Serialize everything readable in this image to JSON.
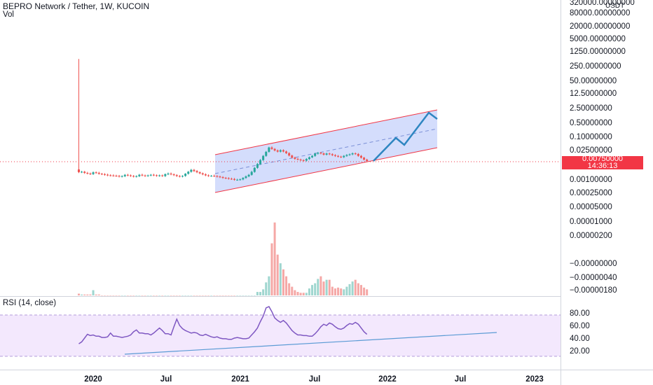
{
  "header": {
    "title": "BEPRO Network / Tether, 1W, KUCOIN",
    "vol_label": "Vol"
  },
  "rsi_panel": {
    "label": "RSI (14, close)",
    "levels": [
      80,
      60,
      40,
      20
    ],
    "level_labels": [
      "80.00",
      "60.00",
      "40.00",
      "20.00"
    ],
    "band": [
      30,
      70
    ]
  },
  "price_scale": {
    "currency": "USDT",
    "labels": [
      "320000.00000000",
      "80000.00000000",
      "20000.00000000",
      "5000.00000000",
      "1250.00000000",
      "250.00000000",
      "50.00000000",
      "12.50000000",
      "2.50000000",
      "0.50000000",
      "0.10000000",
      "0.02500000",
      "0.00100000",
      "0.00025000",
      "0.00005000",
      "0.00001000",
      "0.00000200",
      "−0.00000000",
      "−0.00000040",
      "−0.00000180"
    ]
  },
  "last_price": {
    "value": "0.00750000",
    "countdown": "14:36:13"
  },
  "time_axis": {
    "labels": [
      "2020",
      "Jul",
      "2021",
      "Jul",
      "2022",
      "Jul",
      "2023"
    ]
  },
  "colors": {
    "up": "#26a69a",
    "down": "#ef5350",
    "channel_fill": "#c9d4fb",
    "channel_line": "#f23645",
    "projection": "#2e86c1",
    "rsi_line": "#7e57c2",
    "rsi_band": "#f3e8fd",
    "trendline": "#5b9bd5"
  },
  "chart_data": [
    {
      "type": "candlestick",
      "title": "BEPRO Network / Tether, 1W, KUCOIN",
      "y_scale": "log",
      "series": [
        {
          "name": "BEPRO/USDT",
          "x": [
            "2019-12-09",
            "2019-12-16",
            "2019-12-23",
            "2019-12-30",
            "2020-01-06",
            "2020-01-13",
            "2020-01-20",
            "2020-01-27",
            "2020-02-03",
            "2020-02-10",
            "2020-02-17",
            "2020-02-24",
            "2020-03-02",
            "2020-03-09",
            "2020-03-16",
            "2020-03-23",
            "2020-03-30",
            "2020-04-06",
            "2020-04-13",
            "2020-04-20",
            "2020-04-27",
            "2020-05-04",
            "2020-05-11",
            "2020-05-18",
            "2020-05-25",
            "2020-06-01",
            "2020-06-08",
            "2020-06-15",
            "2020-06-22",
            "2020-06-29",
            "2020-07-06",
            "2020-07-13",
            "2020-07-20",
            "2020-07-27",
            "2020-08-03",
            "2020-08-10",
            "2020-08-17",
            "2020-08-24",
            "2020-08-31",
            "2020-09-07",
            "2020-09-14",
            "2020-09-21",
            "2020-09-28",
            "2020-10-05",
            "2020-10-12",
            "2020-10-19",
            "2020-10-26",
            "2020-11-02",
            "2020-11-09",
            "2020-11-16",
            "2020-11-23",
            "2020-11-30",
            "2020-12-07",
            "2020-12-14",
            "2020-12-21",
            "2020-12-28",
            "2021-01-04",
            "2021-01-11",
            "2021-01-18",
            "2021-01-25",
            "2021-02-01",
            "2021-02-08",
            "2021-02-15",
            "2021-02-22",
            "2021-03-01",
            "2021-03-08",
            "2021-03-15",
            "2021-03-22",
            "2021-03-29",
            "2021-04-05",
            "2021-04-12",
            "2021-04-19",
            "2021-04-26",
            "2021-05-03",
            "2021-05-10",
            "2021-05-17",
            "2021-05-24",
            "2021-05-31",
            "2021-06-07",
            "2021-06-14",
            "2021-06-21",
            "2021-06-28",
            "2021-07-05",
            "2021-07-12",
            "2021-07-19",
            "2021-07-26",
            "2021-08-02",
            "2021-08-09",
            "2021-08-16",
            "2021-08-23",
            "2021-08-30",
            "2021-09-06",
            "2021-09-13",
            "2021-09-20",
            "2021-09-27",
            "2021-10-04",
            "2021-10-11",
            "2021-10-18",
            "2021-10-25",
            "2021-11-01",
            "2021-11-08"
          ],
          "open": [
            0.00295,
            0.00218,
            0.00228,
            0.002,
            0.00187,
            0.00176,
            0.00213,
            0.00202,
            0.00182,
            0.00174,
            0.00164,
            0.00154,
            0.00151,
            0.00147,
            0.00144,
            0.00135,
            0.0014,
            0.00162,
            0.00153,
            0.00143,
            0.00133,
            0.0014,
            0.00163,
            0.00152,
            0.00143,
            0.00152,
            0.00163,
            0.00155,
            0.00145,
            0.00153,
            0.00142,
            0.00174,
            0.00185,
            0.00171,
            0.00157,
            0.00142,
            0.00134,
            0.00144,
            0.00183,
            0.00227,
            0.00281,
            0.00246,
            0.00216,
            0.00191,
            0.00171,
            0.00153,
            0.00143,
            0.00145,
            0.00141,
            0.00134,
            0.00126,
            0.00116,
            0.00112,
            0.00105,
            0.00102,
            0.00093,
            0.00094,
            0.00098,
            0.00115,
            0.00136,
            0.00162,
            0.00224,
            0.00351,
            0.00534,
            0.00829,
            0.0132,
            0.0207,
            0.0335,
            0.0286,
            0.0241,
            0.0212,
            0.0247,
            0.0215,
            0.0179,
            0.0137,
            0.0109,
            0.0095,
            0.00879,
            0.00821,
            0.00783,
            0.00934,
            0.0113,
            0.0132,
            0.0169,
            0.0185,
            0.0173,
            0.0152,
            0.0171,
            0.0159,
            0.0143,
            0.0131,
            0.0121,
            0.0115,
            0.0132,
            0.0146,
            0.0157,
            0.0174,
            0.0163,
            0.0132,
            0.0108,
            0.00874
          ],
          "high": [
            600,
            0.00251,
            0.00251,
            0.00225,
            0.00209,
            0.00235,
            0.00237,
            0.00227,
            0.002,
            0.00195,
            0.00185,
            0.00173,
            0.00171,
            0.00164,
            0.0016,
            0.00154,
            0.00177,
            0.00181,
            0.00169,
            0.00158,
            0.00153,
            0.00179,
            0.00183,
            0.00167,
            0.00167,
            0.00178,
            0.00182,
            0.00169,
            0.00167,
            0.00167,
            0.00189,
            0.0021,
            0.0021,
            0.00189,
            0.00174,
            0.00157,
            0.00155,
            0.00195,
            0.0025,
            0.00312,
            0.00309,
            0.00276,
            0.00237,
            0.0021,
            0.00191,
            0.0017,
            0.00159,
            0.00167,
            0.00157,
            0.00148,
            0.00139,
            0.00128,
            0.00124,
            0.00118,
            0.00114,
            0.00105,
            0.00108,
            0.00125,
            0.00151,
            0.00179,
            0.00254,
            0.00384,
            0.00594,
            0.00928,
            0.0145,
            0.0228,
            0.0366,
            0.0379,
            0.0313,
            0.0267,
            0.0272,
            0.0273,
            0.0237,
            0.0198,
            0.0151,
            0.0121,
            0.0106,
            0.00974,
            0.00899,
            0.0103,
            0.0124,
            0.0145,
            0.0186,
            0.0204,
            0.0204,
            0.0189,
            0.0188,
            0.0188,
            0.0176,
            0.0159,
            0.0145,
            0.0134,
            0.0144,
            0.016,
            0.0172,
            0.0192,
            0.0192,
            0.018,
            0.0146,
            0.0119,
            0.00964
          ],
          "low": [
            0.00197,
            0.00197,
            0.00181,
            0.0017,
            0.00159,
            0.0016,
            0.00183,
            0.00165,
            0.00158,
            0.00148,
            0.00139,
            0.00136,
            0.00133,
            0.0013,
            0.00121,
            0.00122,
            0.00126,
            0.00138,
            0.0013,
            0.00121,
            0.00121,
            0.00127,
            0.00138,
            0.00129,
            0.00131,
            0.00138,
            0.0014,
            0.00132,
            0.00131,
            0.00129,
            0.00128,
            0.00157,
            0.00155,
            0.00142,
            0.00129,
            0.00122,
            0.00122,
            0.00131,
            0.00166,
            0.00206,
            0.00223,
            0.00195,
            0.00174,
            0.00155,
            0.0014,
            0.0013,
            0.00131,
            0.00128,
            0.00121,
            0.00114,
            0.00105,
            0.00101,
            0.00096,
            0.00093,
            0.00085,
            0.00085,
            0.00086,
            0.00089,
            0.00105,
            0.00124,
            0.00148,
            0.00205,
            0.0032,
            0.00488,
            0.00758,
            0.012,
            0.0189,
            0.026,
            0.0218,
            0.0192,
            0.0193,
            0.0196,
            0.0162,
            0.0124,
            0.00989,
            0.0086,
            0.00796,
            0.00745,
            0.00709,
            0.00711,
            0.00846,
            0.0103,
            0.012,
            0.0153,
            0.0157,
            0.0138,
            0.0138,
            0.0144,
            0.013,
            0.0118,
            0.011,
            0.0104,
            0.0104,
            0.0119,
            0.0133,
            0.0142,
            0.0148,
            0.012,
            0.00979,
            0.00792,
            0.00679
          ],
          "close": [
            0.00218,
            0.00228,
            0.002,
            0.00187,
            0.00176,
            0.00213,
            0.00202,
            0.00182,
            0.00174,
            0.00164,
            0.00154,
            0.00151,
            0.00147,
            0.00144,
            0.00135,
            0.0014,
            0.00162,
            0.00153,
            0.00143,
            0.00133,
            0.0014,
            0.00163,
            0.00152,
            0.00143,
            0.00152,
            0.00163,
            0.00155,
            0.00145,
            0.00153,
            0.00142,
            0.00174,
            0.00185,
            0.00171,
            0.00157,
            0.00142,
            0.00134,
            0.00144,
            0.00183,
            0.00227,
            0.00281,
            0.00246,
            0.00216,
            0.00191,
            0.00171,
            0.00153,
            0.00143,
            0.00145,
            0.00141,
            0.00134,
            0.00126,
            0.00116,
            0.00112,
            0.00105,
            0.00102,
            0.00093,
            0.00094,
            0.00098,
            0.00115,
            0.00136,
            0.00162,
            0.00224,
            0.00351,
            0.00534,
            0.00829,
            0.0132,
            0.0207,
            0.0335,
            0.0286,
            0.0241,
            0.0212,
            0.0247,
            0.0215,
            0.0179,
            0.0137,
            0.0109,
            0.0095,
            0.00879,
            0.00821,
            0.00783,
            0.00934,
            0.0113,
            0.0132,
            0.0169,
            0.0185,
            0.0173,
            0.0152,
            0.0171,
            0.0159,
            0.0143,
            0.0131,
            0.0121,
            0.0115,
            0.0132,
            0.0146,
            0.0157,
            0.0174,
            0.0163,
            0.0132,
            0.0108,
            0.00874,
            0.0075
          ]
        }
      ],
      "last_value": 0.0075
    },
    {
      "type": "bar",
      "name": "Vol",
      "values": [
        2,
        1,
        1,
        1,
        1,
        6,
        1,
        1,
        0,
        0,
        0,
        0,
        0,
        0,
        0,
        0,
        0,
        0,
        0,
        0,
        0,
        0,
        0,
        0,
        0,
        0,
        0,
        0,
        0,
        0,
        0,
        0,
        0,
        0,
        0,
        0,
        0,
        0,
        0,
        0,
        0,
        0,
        0,
        0,
        0,
        0,
        0,
        0,
        0,
        0,
        0,
        0,
        0,
        0,
        0,
        0,
        0,
        0,
        0,
        0,
        0,
        0,
        4,
        4,
        7,
        15,
        22,
        60,
        84,
        47,
        37,
        30,
        22,
        14,
        10,
        6,
        4,
        3,
        3,
        3,
        8,
        12,
        14,
        19,
        22,
        16,
        18,
        18,
        10,
        8,
        9,
        8,
        7,
        10,
        13,
        16,
        18,
        14,
        12,
        9,
        7
      ]
    },
    {
      "type": "line",
      "name": "RSI (14, close)",
      "ylim": [
        15,
        90
      ],
      "values": [
        31,
        34,
        40,
        46,
        44,
        45,
        43,
        43,
        41,
        41,
        42,
        48,
        43,
        43,
        42,
        41,
        42,
        43,
        45,
        50,
        53,
        48,
        48,
        47,
        47,
        45,
        48,
        52,
        56,
        52,
        47,
        47,
        45,
        58,
        70,
        60,
        55,
        52,
        50,
        48,
        49,
        48,
        45,
        44,
        46,
        44,
        42,
        41,
        42,
        40,
        39,
        39,
        38,
        38,
        40,
        41,
        40,
        39,
        39,
        40,
        45,
        50,
        56,
        66,
        75,
        88,
        90,
        82,
        72,
        68,
        65,
        68,
        64,
        58,
        52,
        48,
        45,
        45,
        44,
        44,
        43,
        43,
        47,
        52,
        58,
        62,
        60,
        64,
        62,
        58,
        55,
        54,
        56,
        60,
        63,
        62,
        65,
        62,
        56,
        50,
        46
      ]
    }
  ]
}
